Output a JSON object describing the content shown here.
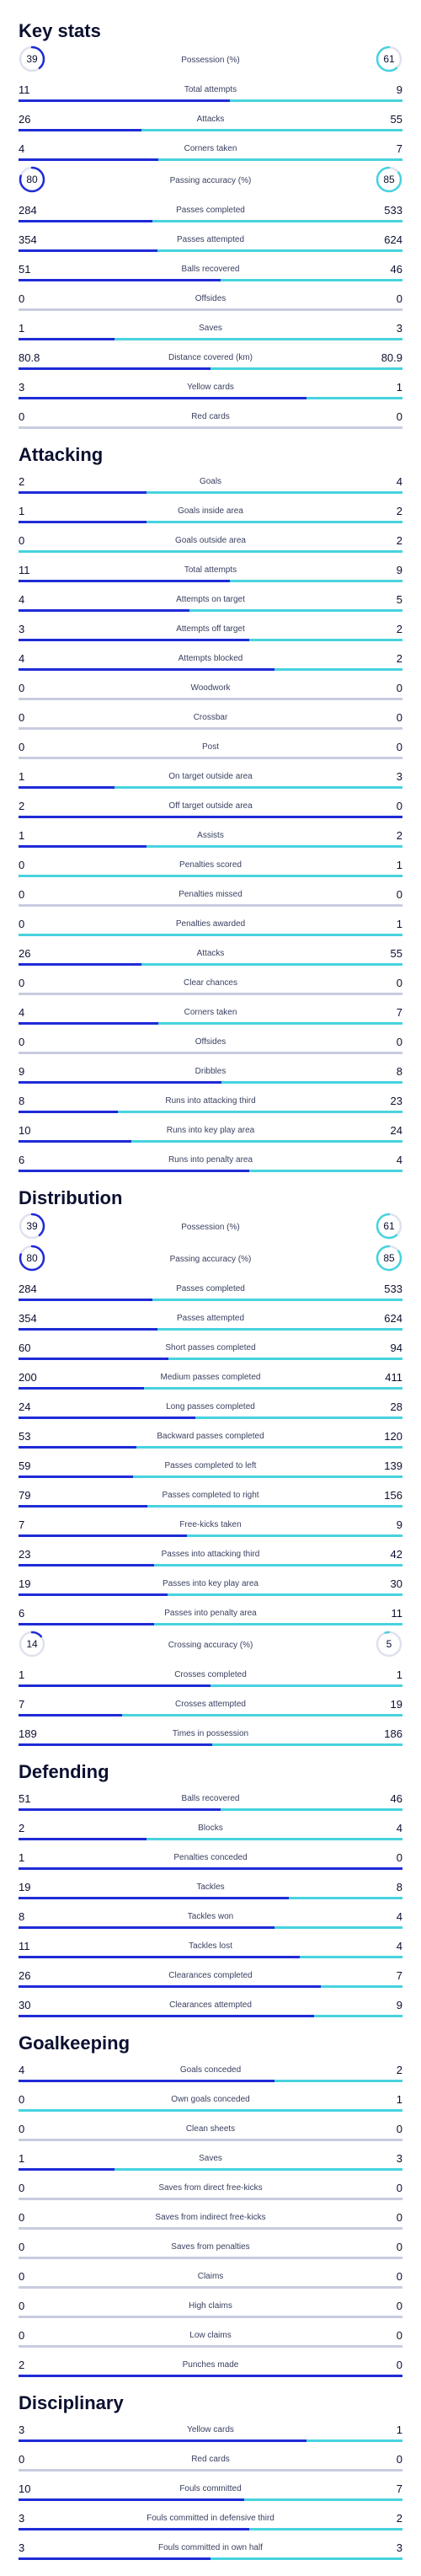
{
  "colors": {
    "home": "#1f2bd6",
    "away": "#47d3df",
    "track": "#e8eaf2",
    "ring_track": "#dfe2ee"
  },
  "sections": [
    {
      "title": "Key stats",
      "rows": [
        {
          "kind": "ring",
          "label": "Possession (%)",
          "home": "39",
          "away": "61",
          "home_frac": 0.39,
          "away_frac": 0.61
        },
        {
          "kind": "bar",
          "label": "Total attempts",
          "home": "11",
          "away": "9"
        },
        {
          "kind": "bar",
          "label": "Attacks",
          "home": "26",
          "away": "55"
        },
        {
          "kind": "bar",
          "label": "Corners taken",
          "home": "4",
          "away": "7"
        },
        {
          "kind": "ring",
          "label": "Passing accuracy (%)",
          "home": "80",
          "away": "85",
          "home_frac": 0.8,
          "away_frac": 0.85
        },
        {
          "kind": "bar",
          "label": "Passes completed",
          "home": "284",
          "away": "533"
        },
        {
          "kind": "bar",
          "label": "Passes attempted",
          "home": "354",
          "away": "624"
        },
        {
          "kind": "bar",
          "label": "Balls recovered",
          "home": "51",
          "away": "46"
        },
        {
          "kind": "bar",
          "label": "Offsides",
          "home": "0",
          "away": "0"
        },
        {
          "kind": "bar",
          "label": "Saves",
          "home": "1",
          "away": "3"
        },
        {
          "kind": "bar",
          "label": "Distance covered (km)",
          "home": "80.8",
          "away": "80.9"
        },
        {
          "kind": "bar",
          "label": "Yellow cards",
          "home": "3",
          "away": "1"
        },
        {
          "kind": "bar",
          "label": "Red cards",
          "home": "0",
          "away": "0"
        }
      ]
    },
    {
      "title": "Attacking",
      "rows": [
        {
          "kind": "bar",
          "label": "Goals",
          "home": "2",
          "away": "4"
        },
        {
          "kind": "bar",
          "label": "Goals inside area",
          "home": "1",
          "away": "2"
        },
        {
          "kind": "bar",
          "label": "Goals outside area",
          "home": "0",
          "away": "2"
        },
        {
          "kind": "bar",
          "label": "Total attempts",
          "home": "11",
          "away": "9"
        },
        {
          "kind": "bar",
          "label": "Attempts on target",
          "home": "4",
          "away": "5"
        },
        {
          "kind": "bar",
          "label": "Attempts off target",
          "home": "3",
          "away": "2"
        },
        {
          "kind": "bar",
          "label": "Attempts blocked",
          "home": "4",
          "away": "2"
        },
        {
          "kind": "bar",
          "label": "Woodwork",
          "home": "0",
          "away": "0"
        },
        {
          "kind": "bar",
          "label": "Crossbar",
          "home": "0",
          "away": "0"
        },
        {
          "kind": "bar",
          "label": "Post",
          "home": "0",
          "away": "0"
        },
        {
          "kind": "bar",
          "label": "On target outside area",
          "home": "1",
          "away": "3"
        },
        {
          "kind": "bar",
          "label": "Off target outside area",
          "home": "2",
          "away": "0"
        },
        {
          "kind": "bar",
          "label": "Assists",
          "home": "1",
          "away": "2"
        },
        {
          "kind": "bar",
          "label": "Penalties scored",
          "home": "0",
          "away": "1"
        },
        {
          "kind": "bar",
          "label": "Penalties missed",
          "home": "0",
          "away": "0"
        },
        {
          "kind": "bar",
          "label": "Penalties awarded",
          "home": "0",
          "away": "1"
        },
        {
          "kind": "bar",
          "label": "Attacks",
          "home": "26",
          "away": "55"
        },
        {
          "kind": "bar",
          "label": "Clear chances",
          "home": "0",
          "away": "0"
        },
        {
          "kind": "bar",
          "label": "Corners taken",
          "home": "4",
          "away": "7"
        },
        {
          "kind": "bar",
          "label": "Offsides",
          "home": "0",
          "away": "0"
        },
        {
          "kind": "bar",
          "label": "Dribbles",
          "home": "9",
          "away": "8"
        },
        {
          "kind": "bar",
          "label": "Runs into attacking third",
          "home": "8",
          "away": "23"
        },
        {
          "kind": "bar",
          "label": "Runs into key play area",
          "home": "10",
          "away": "24"
        },
        {
          "kind": "bar",
          "label": "Runs into penalty area",
          "home": "6",
          "away": "4"
        }
      ]
    },
    {
      "title": "Distribution",
      "rows": [
        {
          "kind": "ring",
          "label": "Possession (%)",
          "home": "39",
          "away": "61",
          "home_frac": 0.39,
          "away_frac": 0.61
        },
        {
          "kind": "ring",
          "label": "Passing accuracy (%)",
          "home": "80",
          "away": "85",
          "home_frac": 0.8,
          "away_frac": 0.85
        },
        {
          "kind": "bar",
          "label": "Passes completed",
          "home": "284",
          "away": "533"
        },
        {
          "kind": "bar",
          "label": "Passes attempted",
          "home": "354",
          "away": "624"
        },
        {
          "kind": "bar",
          "label": "Short passes completed",
          "home": "60",
          "away": "94"
        },
        {
          "kind": "bar",
          "label": "Medium passes completed",
          "home": "200",
          "away": "411"
        },
        {
          "kind": "bar",
          "label": "Long passes completed",
          "home": "24",
          "away": "28"
        },
        {
          "kind": "bar",
          "label": "Backward passes completed",
          "home": "53",
          "away": "120"
        },
        {
          "kind": "bar",
          "label": "Passes completed to left",
          "home": "59",
          "away": "139"
        },
        {
          "kind": "bar",
          "label": "Passes completed to right",
          "home": "79",
          "away": "156"
        },
        {
          "kind": "bar",
          "label": "Free-kicks taken",
          "home": "7",
          "away": "9"
        },
        {
          "kind": "bar",
          "label": "Passes into attacking third",
          "home": "23",
          "away": "42"
        },
        {
          "kind": "bar",
          "label": "Passes into key play area",
          "home": "19",
          "away": "30"
        },
        {
          "kind": "bar",
          "label": "Passes into penalty area",
          "home": "6",
          "away": "11"
        },
        {
          "kind": "ring",
          "label": "Crossing accuracy (%)",
          "home": "14",
          "away": "5",
          "home_frac": 0.14,
          "away_frac": 0.05
        },
        {
          "kind": "bar",
          "label": "Crosses completed",
          "home": "1",
          "away": "1"
        },
        {
          "kind": "bar",
          "label": "Crosses attempted",
          "home": "7",
          "away": "19"
        },
        {
          "kind": "bar",
          "label": "Times in possession",
          "home": "189",
          "away": "186"
        }
      ]
    },
    {
      "title": "Defending",
      "rows": [
        {
          "kind": "bar",
          "label": "Balls recovered",
          "home": "51",
          "away": "46"
        },
        {
          "kind": "bar",
          "label": "Blocks",
          "home": "2",
          "away": "4"
        },
        {
          "kind": "bar",
          "label": "Penalties conceded",
          "home": "1",
          "away": "0"
        },
        {
          "kind": "bar",
          "label": "Tackles",
          "home": "19",
          "away": "8"
        },
        {
          "kind": "bar",
          "label": "Tackles won",
          "home": "8",
          "away": "4"
        },
        {
          "kind": "bar",
          "label": "Tackles lost",
          "home": "11",
          "away": "4"
        },
        {
          "kind": "bar",
          "label": "Clearances completed",
          "home": "26",
          "away": "7"
        },
        {
          "kind": "bar",
          "label": "Clearances attempted",
          "home": "30",
          "away": "9"
        }
      ]
    },
    {
      "title": "Goalkeeping",
      "rows": [
        {
          "kind": "bar",
          "label": "Goals conceded",
          "home": "4",
          "away": "2"
        },
        {
          "kind": "bar",
          "label": "Own goals conceded",
          "home": "0",
          "away": "1"
        },
        {
          "kind": "bar",
          "label": "Clean sheets",
          "home": "0",
          "away": "0"
        },
        {
          "kind": "bar",
          "label": "Saves",
          "home": "1",
          "away": "3"
        },
        {
          "kind": "bar",
          "label": "Saves from direct free-kicks",
          "home": "0",
          "away": "0"
        },
        {
          "kind": "bar",
          "label": "Saves from indirect free-kicks",
          "home": "0",
          "away": "0"
        },
        {
          "kind": "bar",
          "label": "Saves from penalties",
          "home": "0",
          "away": "0"
        },
        {
          "kind": "bar",
          "label": "Claims",
          "home": "0",
          "away": "0"
        },
        {
          "kind": "bar",
          "label": "High claims",
          "home": "0",
          "away": "0"
        },
        {
          "kind": "bar",
          "label": "Low claims",
          "home": "0",
          "away": "0"
        },
        {
          "kind": "bar",
          "label": "Punches made",
          "home": "2",
          "away": "0"
        }
      ]
    },
    {
      "title": "Disciplinary",
      "rows": [
        {
          "kind": "bar",
          "label": "Yellow cards",
          "home": "3",
          "away": "1"
        },
        {
          "kind": "bar",
          "label": "Red cards",
          "home": "0",
          "away": "0"
        },
        {
          "kind": "bar",
          "label": "Fouls committed",
          "home": "10",
          "away": "7"
        },
        {
          "kind": "bar",
          "label": "Fouls committed in defensive third",
          "home": "3",
          "away": "2"
        },
        {
          "kind": "bar",
          "label": "Fouls committed in own half",
          "home": "3",
          "away": "3"
        }
      ]
    }
  ]
}
